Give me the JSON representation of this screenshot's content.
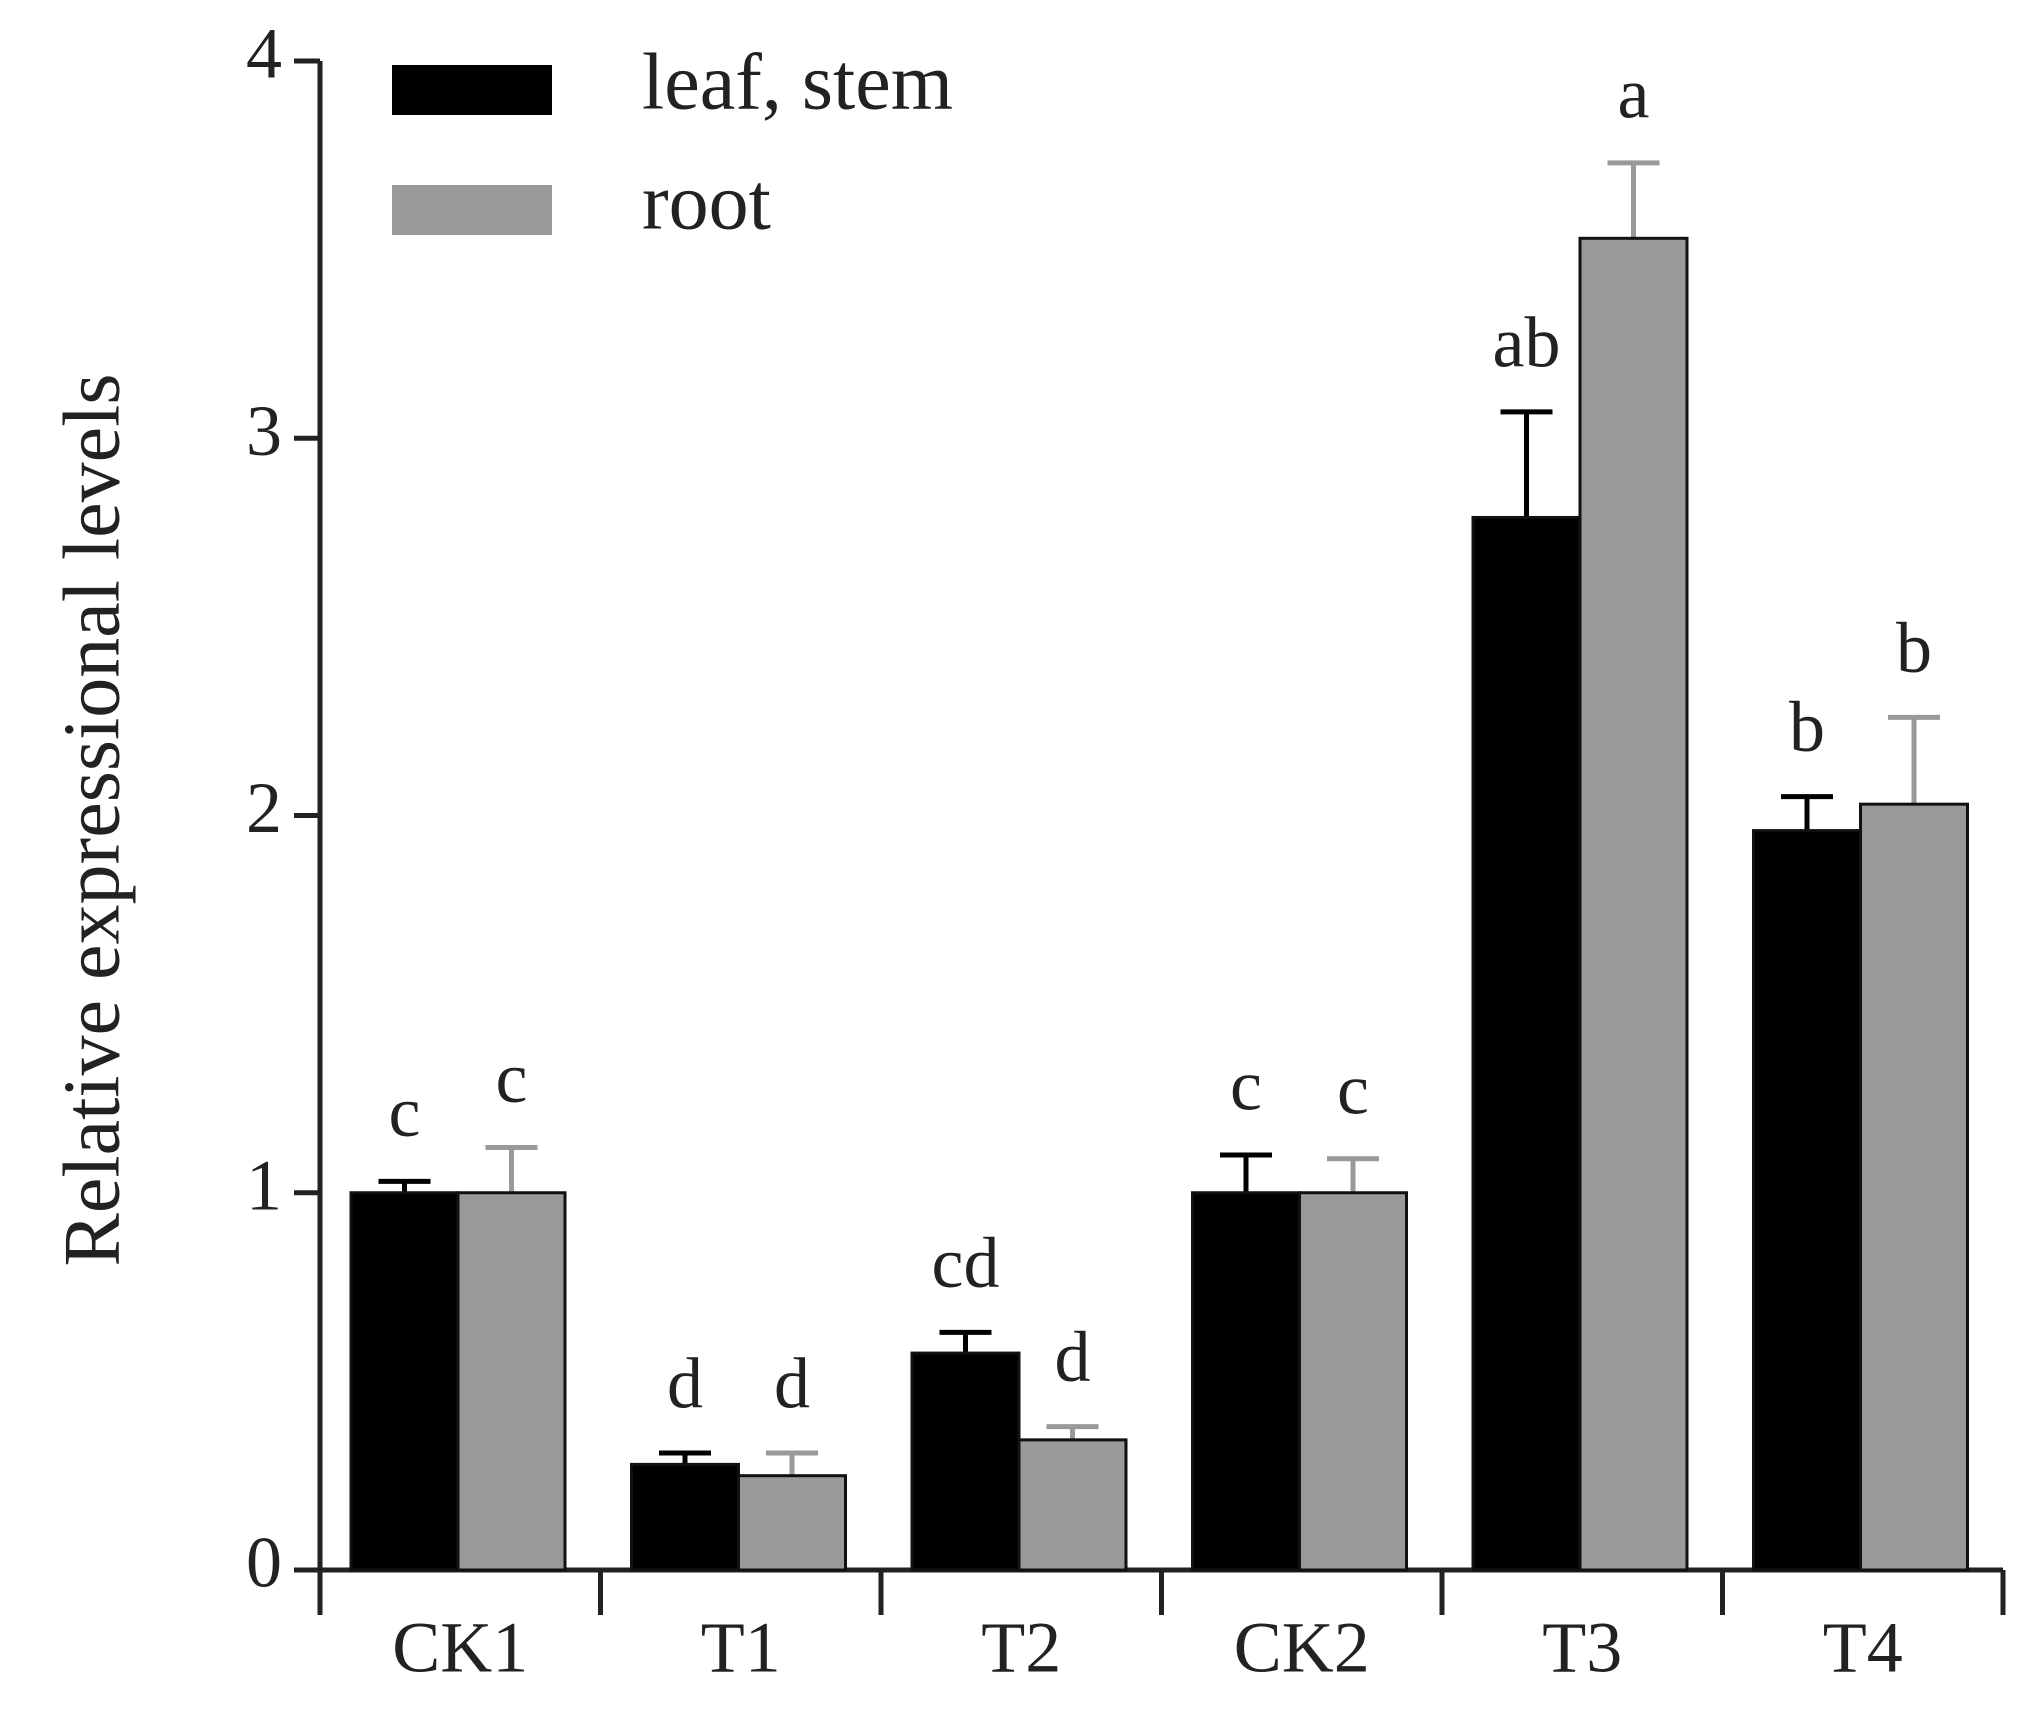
{
  "chart_data": {
    "type": "bar",
    "y_label": "Relative expressional levels",
    "categories": [
      "CK1",
      "T1",
      "T2",
      "CK2",
      "T3",
      "T4"
    ],
    "series": [
      {
        "name": "leaf, stem",
        "color": "#000000",
        "values": [
          1.0,
          0.28,
          0.575,
          1.0,
          2.79,
          1.96
        ],
        "errors": [
          0.03,
          0.03,
          0.055,
          0.1,
          0.28,
          0.09
        ],
        "annotations": [
          "c",
          "d",
          "cd",
          "c",
          "ab",
          "b"
        ]
      },
      {
        "name": "root",
        "color": "#999999",
        "values": [
          1.0,
          0.25,
          0.345,
          1.0,
          3.53,
          2.03
        ],
        "errors": [
          0.12,
          0.06,
          0.035,
          0.09,
          0.2,
          0.23
        ],
        "annotations": [
          "c",
          "d",
          "d",
          "c",
          "a",
          "b"
        ]
      }
    ],
    "ylim": [
      0,
      4
    ],
    "yticks": [
      0,
      1,
      2,
      3,
      4
    ],
    "legend": "upper left"
  }
}
